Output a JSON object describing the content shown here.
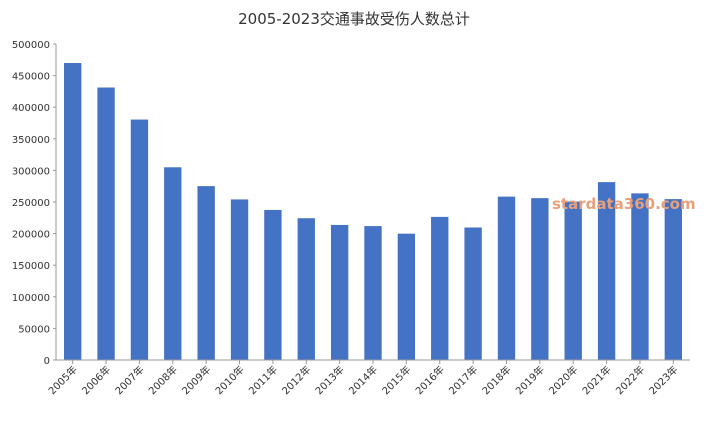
{
  "chart_data": {
    "type": "bar",
    "title": "2005-2023交通事故受伤人数总计",
    "xlabel": "",
    "ylabel": "",
    "categories": [
      "2005年",
      "2006年",
      "2007年",
      "2008年",
      "2009年",
      "2010年",
      "2011年",
      "2012年",
      "2013年",
      "2014年",
      "2015年",
      "2016年",
      "2017年",
      "2018年",
      "2019年",
      "2020年",
      "2021年",
      "2022年",
      "2023年"
    ],
    "values": [
      469911,
      431139,
      380442,
      304919,
      275125,
      254075,
      237421,
      224327,
      213724,
      211882,
      199880,
      226430,
      209654,
      258532,
      256101,
      250723,
      281447,
      263621,
      254589
    ],
    "y_ticks": [
      "0",
      "50000",
      "100000",
      "150000",
      "200000",
      "250000",
      "300000",
      "350000",
      "400000",
      "450000",
      "500000"
    ],
    "ylim": [
      0,
      500000
    ],
    "grid": false,
    "legend": "none",
    "bar_color": "#4472c4",
    "axis_color": "#999999",
    "watermark": "stardata360.com",
    "watermark_color": "#e8a07a"
  }
}
